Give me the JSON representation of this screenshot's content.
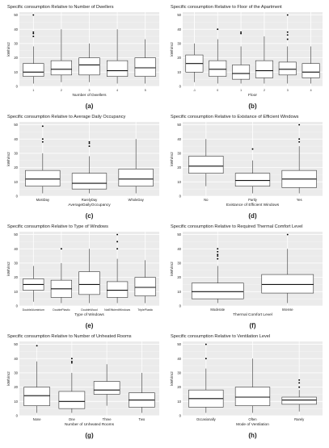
{
  "figure": {
    "colors": {
      "panel_bg": "#ebebeb",
      "grid": "#ffffff",
      "box_fill": "#ffffff",
      "box_stroke": "#333333",
      "median": "#111111",
      "outlier": "#000000",
      "text": "#222222"
    }
  },
  "chart_data": [
    {
      "type": "boxplot",
      "label": "(a)",
      "title": "Specific consumption Relative to Number of Dwellers",
      "xlabel": "Number of Dwellers",
      "ylabel": "kWh/m2",
      "ylim": [
        0,
        52
      ],
      "yticks": [
        0,
        10,
        20,
        30,
        40,
        50
      ],
      "categories": [
        "1",
        "2",
        "3",
        "4",
        "5"
      ],
      "boxes": [
        {
          "min": 2,
          "q1": 7,
          "median": 10,
          "q3": 16,
          "max": 28,
          "outliers": [
            35,
            37,
            38,
            50
          ]
        },
        {
          "min": 3,
          "q1": 8,
          "median": 12,
          "q3": 18,
          "max": 40,
          "outliers": []
        },
        {
          "min": 3,
          "q1": 8,
          "median": 15,
          "q3": 20,
          "max": 30,
          "outliers": []
        },
        {
          "min": 2,
          "q1": 7,
          "median": 11,
          "q3": 18,
          "max": 40,
          "outliers": []
        },
        {
          "min": 2,
          "q1": 7,
          "median": 13,
          "q3": 20,
          "max": 33,
          "outliers": []
        }
      ]
    },
    {
      "type": "boxplot",
      "label": "(b)",
      "title": "Specific consumption Relative to Floor of the Apartment",
      "xlabel": "Floor",
      "ylabel": "kWh/m2",
      "ylim": [
        0,
        52
      ],
      "yticks": [
        0,
        10,
        20,
        30,
        40,
        50
      ],
      "categories": [
        "-1",
        "0",
        "1",
        "2",
        "3",
        "4"
      ],
      "boxes": [
        {
          "min": 3,
          "q1": 10,
          "median": 16,
          "q3": 22,
          "max": 30,
          "outliers": []
        },
        {
          "min": 2,
          "q1": 7,
          "median": 12,
          "q3": 18,
          "max": 33,
          "outliers": [
            40
          ]
        },
        {
          "min": 2,
          "q1": 5,
          "median": 9,
          "q3": 15,
          "max": 28,
          "outliers": [
            37,
            38
          ]
        },
        {
          "min": 2,
          "q1": 6,
          "median": 11,
          "q3": 18,
          "max": 35,
          "outliers": []
        },
        {
          "min": 2,
          "q1": 8,
          "median": 12,
          "q3": 17,
          "max": 28,
          "outliers": [
            33,
            36,
            38,
            50
          ]
        },
        {
          "min": 2,
          "q1": 6,
          "median": 10,
          "q3": 16,
          "max": 28,
          "outliers": []
        }
      ]
    },
    {
      "type": "boxplot",
      "label": "(c)",
      "title": "Specific consumption Relative to Average Daily Occupancy",
      "xlabel": "AverageDailyOccupancy",
      "ylabel": "kWh/m2",
      "ylim": [
        0,
        52
      ],
      "yticks": [
        0,
        10,
        20,
        30,
        40,
        50
      ],
      "categories": [
        "MostDay",
        "RarelyDay",
        "WholeDay"
      ],
      "boxes": [
        {
          "min": 2,
          "q1": 7,
          "median": 12,
          "q3": 18,
          "max": 30,
          "outliers": [
            38,
            40,
            49
          ]
        },
        {
          "min": 2,
          "q1": 5,
          "median": 9,
          "q3": 16,
          "max": 28,
          "outliers": [
            35,
            37,
            38
          ]
        },
        {
          "min": 2,
          "q1": 7,
          "median": 12,
          "q3": 19,
          "max": 40,
          "outliers": []
        }
      ]
    },
    {
      "type": "boxplot",
      "label": "(d)",
      "title": "Specific consumption Relative to Existance of Efficient Windows",
      "xlabel": "Existance of Efficient Windows",
      "ylabel": "kWh/m2",
      "ylim": [
        0,
        52
      ],
      "yticks": [
        0,
        10,
        20,
        30,
        40,
        50
      ],
      "categories": [
        "No",
        "Partly",
        "Yes"
      ],
      "boxes": [
        {
          "min": 7,
          "q1": 16,
          "median": 21,
          "q3": 28,
          "max": 40,
          "outliers": []
        },
        {
          "min": 2,
          "q1": 7,
          "median": 11,
          "q3": 16,
          "max": 25,
          "outliers": [
            33
          ]
        },
        {
          "min": 2,
          "q1": 6,
          "median": 12,
          "q3": 18,
          "max": 35,
          "outliers": [
            38,
            40,
            50
          ]
        }
      ]
    },
    {
      "type": "boxplot",
      "label": "(e)",
      "title": "Specific consumption Relative to Type of Windows",
      "xlabel": "Type of Windows",
      "ylabel": "kWh/m2",
      "ylim": [
        0,
        52
      ],
      "yticks": [
        0,
        10,
        20,
        30,
        40,
        50
      ],
      "categories": [
        "DoubleAluminium",
        "DoublePlastic",
        "DoubleWood",
        "NotEfficientWindows",
        "TriplePlastic"
      ],
      "boxes": [
        {
          "min": 3,
          "q1": 11,
          "median": 15,
          "q3": 19,
          "max": 28,
          "outliers": []
        },
        {
          "min": 2,
          "q1": 6,
          "median": 12,
          "q3": 18,
          "max": 30,
          "outliers": [
            40
          ]
        },
        {
          "min": 2,
          "q1": 8,
          "median": 15,
          "q3": 24,
          "max": 40,
          "outliers": []
        },
        {
          "min": 2,
          "q1": 6,
          "median": 11,
          "q3": 17,
          "max": 33,
          "outliers": [
            40,
            45,
            50
          ]
        },
        {
          "min": 2,
          "q1": 7,
          "median": 13,
          "q3": 20,
          "max": 32,
          "outliers": []
        }
      ]
    },
    {
      "type": "boxplot",
      "label": "(f)",
      "title": "Specific consumption Relative to Required Thermal Comfort Level",
      "xlabel": "Thermal Comfort Level",
      "ylabel": "kWh/m2",
      "ylim": [
        0,
        52
      ],
      "yticks": [
        0,
        10,
        20,
        30,
        40,
        50
      ],
      "categories": [
        "Moderate",
        "Intense"
      ],
      "boxes": [
        {
          "min": 2,
          "q1": 5,
          "median": 10,
          "q3": 16,
          "max": 28,
          "outliers": [
            33,
            35,
            36,
            38,
            40
          ]
        },
        {
          "min": 2,
          "q1": 9,
          "median": 15,
          "q3": 22,
          "max": 40,
          "outliers": [
            50
          ]
        }
      ]
    },
    {
      "type": "boxplot",
      "label": "(g)",
      "title": "Specific consumption Relative to Number of Unheated Rooms",
      "xlabel": "Number of Unheated Rooms",
      "ylabel": "kWh/m2",
      "ylim": [
        0,
        52
      ],
      "yticks": [
        0,
        10,
        20,
        30,
        40,
        50
      ],
      "categories": [
        "None",
        "One",
        "Three",
        "Two"
      ],
      "boxes": [
        {
          "min": 2,
          "q1": 7,
          "median": 14,
          "q3": 20,
          "max": 38,
          "outliers": [
            49
          ]
        },
        {
          "min": 2,
          "q1": 5,
          "median": 10,
          "q3": 17,
          "max": 30,
          "outliers": [
            37,
            38,
            40
          ]
        },
        {
          "min": 7,
          "q1": 15,
          "median": 18,
          "q3": 24,
          "max": 36,
          "outliers": []
        },
        {
          "min": 2,
          "q1": 6,
          "median": 11,
          "q3": 16,
          "max": 30,
          "outliers": []
        }
      ]
    },
    {
      "type": "boxplot",
      "label": "(h)",
      "title": "Specific consumption Relative to Ventilation Level",
      "xlabel": "Mode of Ventilation",
      "ylabel": "kWh/m2",
      "ylim": [
        0,
        52
      ],
      "yticks": [
        0,
        10,
        20,
        30,
        40,
        50
      ],
      "categories": [
        "Occasionally",
        "Often",
        "Rarely"
      ],
      "boxes": [
        {
          "min": 2,
          "q1": 6,
          "median": 12,
          "q3": 18,
          "max": 33,
          "outliers": [
            40,
            50
          ]
        },
        {
          "min": 2,
          "q1": 7,
          "median": 13,
          "q3": 20,
          "max": 40,
          "outliers": []
        },
        {
          "min": 3,
          "q1": 8,
          "median": 11,
          "q3": 13,
          "max": 18,
          "outliers": [
            20,
            23,
            25
          ]
        }
      ]
    }
  ]
}
